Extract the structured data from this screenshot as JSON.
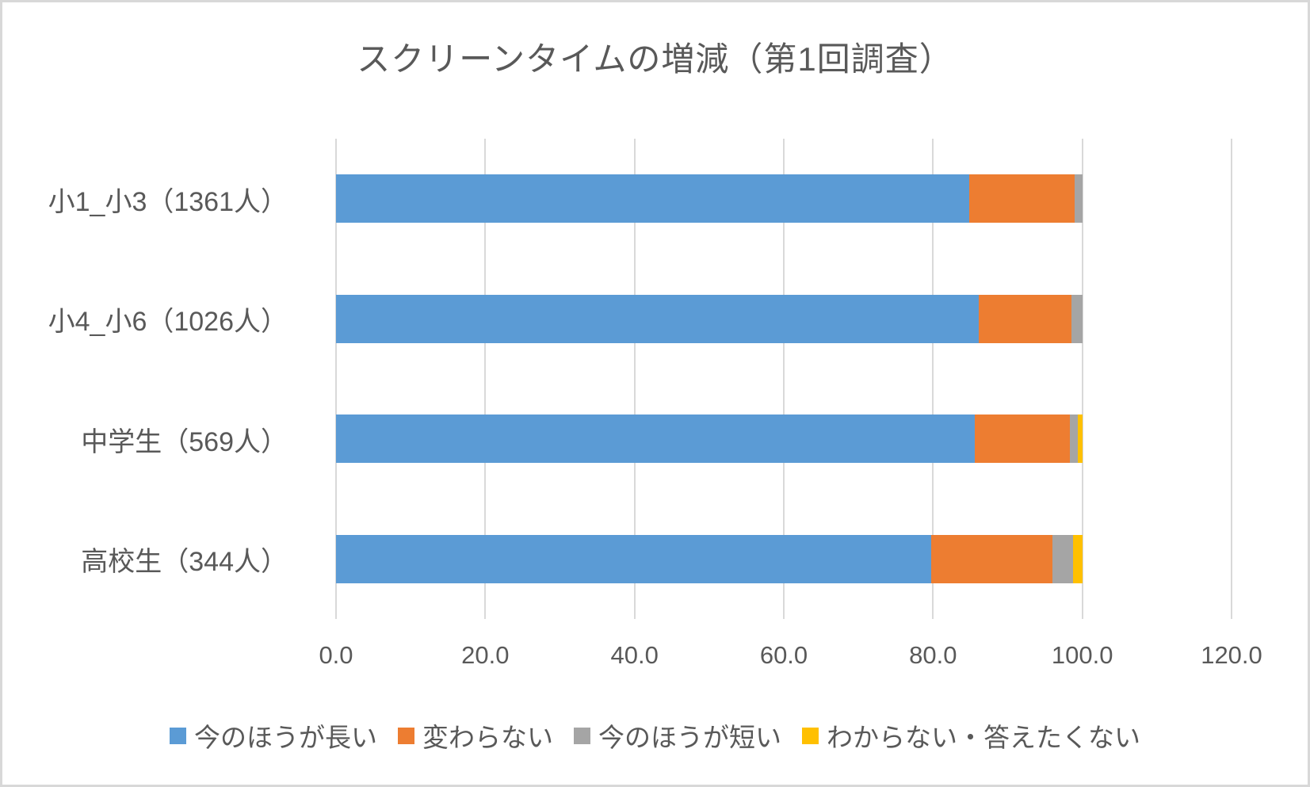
{
  "title": "スクリーンタイムの増減（第1回調査）",
  "colors": {
    "series_blue": "#5B9BD5",
    "series_orange": "#ED7D31",
    "series_gray": "#A5A5A5",
    "series_yellow": "#FFC000",
    "gridline": "#D9D9D9",
    "text": "#595959",
    "frame_border": "#D8D8D8"
  },
  "chart_data": {
    "type": "bar",
    "orientation": "horizontal-stacked",
    "title": "スクリーンタイムの増減（第1回調査）",
    "categories": [
      "小1_小3（1361人）",
      "小4_小6（1026人）",
      "中学生（569人）",
      "高校生（344人）"
    ],
    "series": [
      {
        "name": "今のほうが長い",
        "color": "#5B9BD5",
        "values": [
          84.8,
          86.1,
          85.6,
          79.7
        ]
      },
      {
        "name": "変わらない",
        "color": "#ED7D31",
        "values": [
          14.2,
          12.5,
          12.7,
          16.3
        ]
      },
      {
        "name": "今のほうが短い",
        "color": "#A5A5A5",
        "values": [
          1.0,
          1.4,
          1.1,
          2.8
        ]
      },
      {
        "name": "わからない・答えたくない",
        "color": "#FFC000",
        "values": [
          0.0,
          0.0,
          0.6,
          1.2
        ]
      }
    ],
    "x_ticks": [
      "0.0",
      "20.0",
      "40.0",
      "60.0",
      "80.0",
      "100.0",
      "120.0"
    ],
    "xlim": [
      0,
      120
    ],
    "xlabel": "",
    "ylabel": "",
    "grid": true,
    "legend_position": "bottom"
  }
}
